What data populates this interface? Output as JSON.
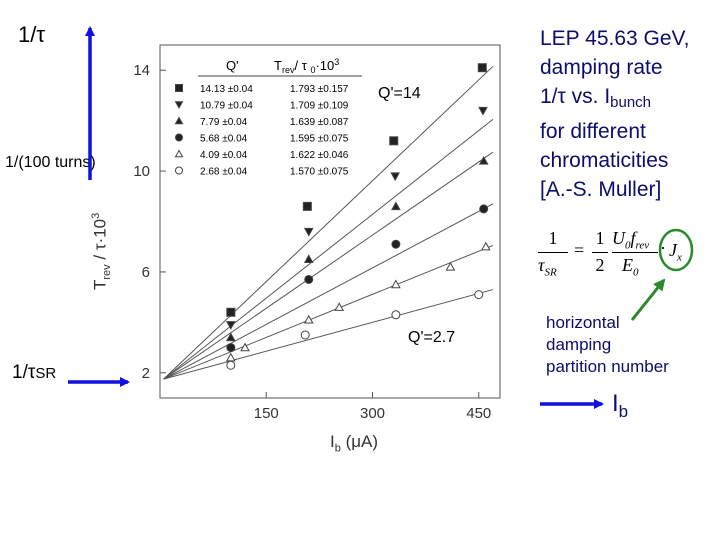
{
  "left_labels": {
    "inv_tau": "1/τ",
    "per_100_turns": "1/(100 turns)",
    "inv_tau_sr_main": "1/τ",
    "inv_tau_sr_sub": "SR"
  },
  "right_panel": {
    "title_line1": "LEP 45.63 GeV,",
    "title_line2": "damping rate",
    "title_line3_main": "1/τ vs. I",
    "title_line3_sub": "bunch",
    "title_line4": "for different",
    "title_line5": "chromaticities",
    "title_line6": "[A.-S. Muller]",
    "formula": {
      "lhs_num": "1",
      "lhs_den": "τ",
      "lhs_den_sub": "SR",
      "eq": "=",
      "half_num": "1",
      "half_den": "2",
      "frac_num": "U",
      "frac_num_sub": "0",
      "frac_num_f": "f",
      "frac_num_f_sub": "rev",
      "frac_den": "E",
      "frac_den_sub": "0",
      "dot": "·",
      "jx": "J",
      "jx_sub": "x"
    },
    "note_line1": "horizontal",
    "note_line2": "damping",
    "note_line3": "partition number",
    "ib_main": "I",
    "ib_sub": "b"
  },
  "colors": {
    "blue_arrow": "#1010e0",
    "text_blue": "#0d0d6b",
    "green_circle": "#2a8a2a",
    "plot_gray": "#444444"
  },
  "chart_data": {
    "type": "scatter",
    "xlabel_main": "I",
    "xlabel_sub": "b",
    "xlabel_unit": "(μA)",
    "ylabel_main": "T",
    "ylabel_sub": "rev",
    "ylabel_rest": "/ τ·10",
    "ylabel_sup": "3",
    "xlim": [
      0,
      480
    ],
    "ylim": [
      1.0,
      15.0
    ],
    "xticks": [
      150,
      300,
      450
    ],
    "yticks": [
      2,
      6,
      10,
      14
    ],
    "annotations": [
      "Q'=14",
      "Q'=2.7"
    ],
    "legend": {
      "col1": "Q'",
      "col2_main": "T",
      "col2_sub": "rev",
      "col2_rest": "/ τ",
      "col2_sub2": "0",
      "col2_tail": "·10",
      "col2_sup": "3",
      "rows": [
        {
          "marker": "square",
          "q": "14.13 ±0.04",
          "t": "1.793 ±0.157"
        },
        {
          "marker": "triangle-down",
          "q": "10.79 ±0.04",
          "t": "1.709 ±0.109"
        },
        {
          "marker": "triangle-up",
          "q": "7.79 ±0.04",
          "t": "1.639 ±0.087"
        },
        {
          "marker": "circle",
          "q": "5.68 ±0.04",
          "t": "1.595 ±0.075"
        },
        {
          "marker": "triangle-open",
          "q": "4.09 ±0.04",
          "t": "1.622 ±0.046"
        },
        {
          "marker": "circle-open",
          "q": "2.68 ±0.04",
          "t": "1.570 ±0.075"
        }
      ]
    },
    "series": [
      {
        "marker": "square",
        "fill": true,
        "x": [
          100,
          208,
          330,
          455
        ],
        "y": [
          4.4,
          8.6,
          11.2,
          14.1
        ]
      },
      {
        "marker": "triangle-down",
        "fill": true,
        "x": [
          100,
          210,
          332,
          456
        ],
        "y": [
          3.9,
          7.6,
          9.8,
          12.4
        ]
      },
      {
        "marker": "triangle-up",
        "fill": true,
        "x": [
          100,
          210,
          333,
          457
        ],
        "y": [
          3.4,
          6.5,
          8.6,
          10.4
        ]
      },
      {
        "marker": "circle",
        "fill": true,
        "x": [
          100,
          210,
          333,
          457
        ],
        "y": [
          3.0,
          5.7,
          7.1,
          8.5
        ]
      },
      {
        "marker": "triangle",
        "fill": false,
        "x": [
          100,
          120,
          210,
          253,
          333,
          410,
          460
        ],
        "y": [
          2.6,
          3.0,
          4.1,
          4.6,
          5.5,
          6.2,
          7.0
        ]
      },
      {
        "marker": "circle",
        "fill": false,
        "x": [
          100,
          205,
          333,
          450
        ],
        "y": [
          2.3,
          3.5,
          4.3,
          5.1
        ]
      }
    ],
    "fit_lines": [
      {
        "x": [
          5,
          470
        ],
        "y": [
          1.75,
          14.15
        ]
      },
      {
        "x": [
          5,
          470
        ],
        "y": [
          1.75,
          12.05
        ]
      },
      {
        "x": [
          5,
          470
        ],
        "y": [
          1.75,
          10.75
        ]
      },
      {
        "x": [
          5,
          470
        ],
        "y": [
          1.75,
          8.7
        ]
      },
      {
        "x": [
          5,
          470
        ],
        "y": [
          1.75,
          7.05
        ]
      },
      {
        "x": [
          5,
          470
        ],
        "y": [
          1.75,
          5.3
        ]
      }
    ]
  }
}
